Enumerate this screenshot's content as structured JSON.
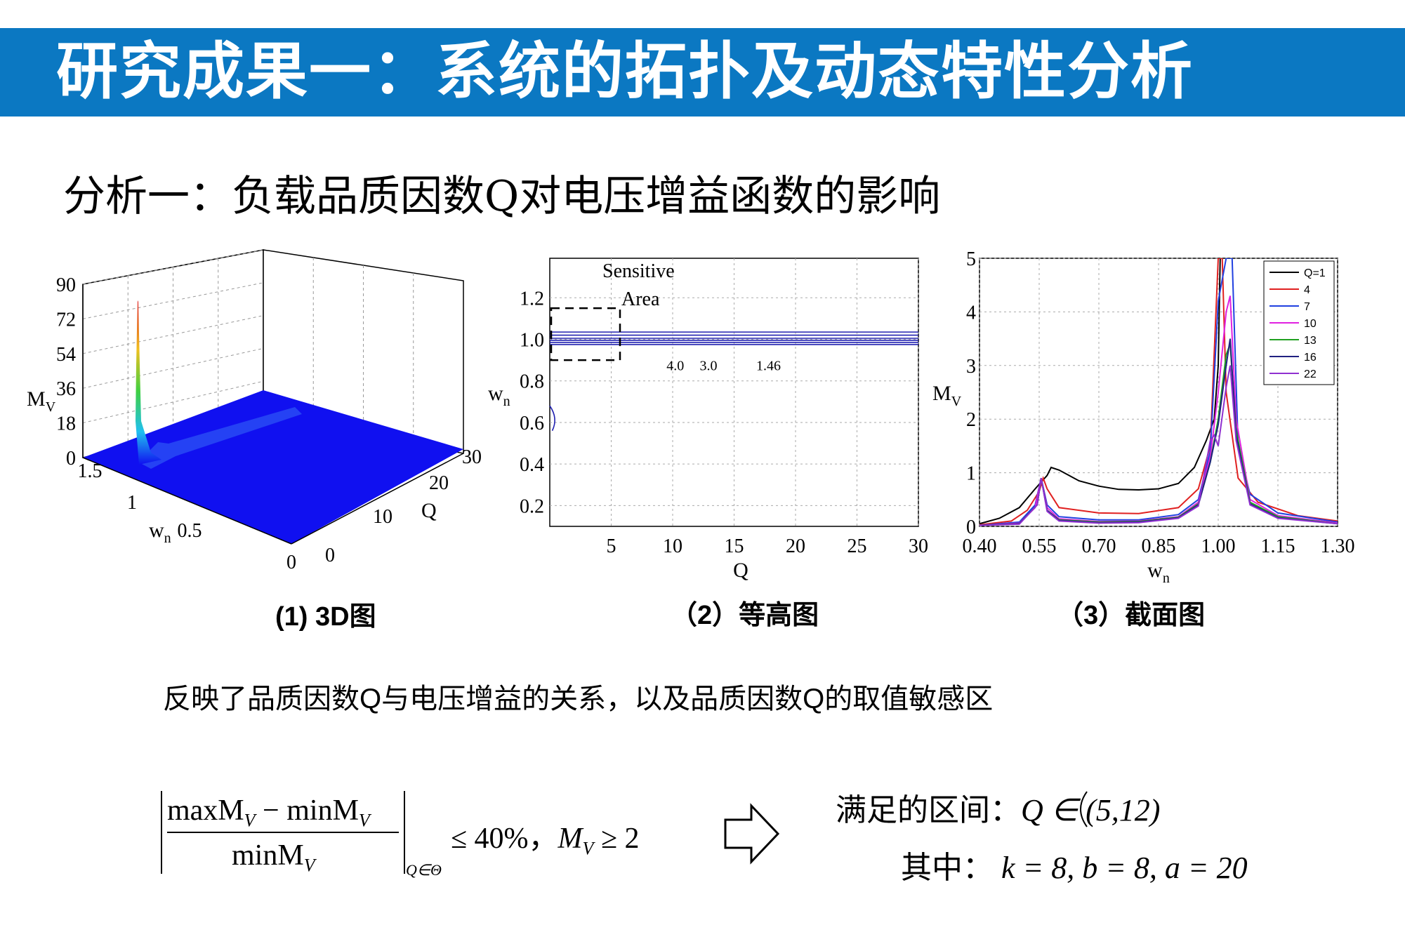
{
  "title": "研究成果一：系统的拓扑及动态特性分析",
  "subtitle": "分析一：负载品质因数Q对电压增益函数的影响",
  "colors": {
    "title_bar": "#0b78c2",
    "title_text": "#ffffff"
  },
  "captions": {
    "c1": "(1) 3D图",
    "c2": "（2）等高图",
    "c3": "（3）截面图"
  },
  "note": "反映了品质因数Q与电压增益的关系，以及品质因数Q的取值敏感区",
  "formula": {
    "numerator": "maxM",
    "numerator_minus": "− minM",
    "sub_v": "V",
    "denominator": "minM",
    "subscript": "Q∈Θ",
    "condition": "≤ 40%，",
    "condition_m": "M",
    "condition_ge": " ≥ 2",
    "arrow_icon": "hollow-right-arrow-icon",
    "result_label": "满足的区间：",
    "result_expr": "Q ∈ (5,12)",
    "params_label": "其中：",
    "params": "k = 8,    b = 8,    a = 20"
  },
  "chart_data": [
    {
      "type": "surface-3d",
      "zlabel": "M",
      "zlabel_sub": "V",
      "ylabel": "w",
      "ylabel_sub": "n",
      "xlabel": "Q",
      "z_ticks": [
        "90",
        "72",
        "54",
        "36",
        "18",
        "0"
      ],
      "wn_ticks": [
        "1.5",
        "1",
        "0.5",
        "0"
      ],
      "q_ticks": [
        "30",
        "20",
        "10",
        "0"
      ],
      "zlim": [
        0,
        90
      ],
      "wn_range": [
        0,
        1.5
      ],
      "q_range": [
        0,
        30
      ],
      "peak": {
        "q": 0.5,
        "wn": 1.0,
        "mv": 85
      },
      "colors": {
        "surface": "#1010f0",
        "peak": "#e02020"
      }
    },
    {
      "type": "contour",
      "xlabel": "Q",
      "ylabel": "w",
      "ylabel_sub": "n",
      "x_ticks": [
        "5",
        "10",
        "15",
        "20",
        "25",
        "30"
      ],
      "y_ticks": [
        "1.2",
        "1.0",
        "0.8",
        "0.6",
        "0.4",
        "0.2"
      ],
      "xlim": [
        0,
        30
      ],
      "ylim": [
        0.1,
        1.39
      ],
      "sensitive_label": [
        "Sensitive",
        "Area"
      ],
      "sensitive_box": {
        "q": [
          0,
          5.6
        ],
        "wn": [
          0.9,
          1.15
        ]
      },
      "contour_labels": [
        {
          "text": "4.0",
          "q": 9.5,
          "wn": 0.98
        },
        {
          "text": "3.0",
          "q": 12.2,
          "wn": 0.98
        },
        {
          "text": "1.46",
          "q": 16.8,
          "wn": 0.98
        }
      ],
      "line_color": "#2020b0"
    },
    {
      "type": "line",
      "xlabel": "w",
      "xlabel_sub": "n",
      "ylabel": "M",
      "ylabel_sub": "V",
      "x_ticks": [
        "0.40",
        "0.55",
        "0.70",
        "0.85",
        "1.00",
        "1.15",
        "1.30"
      ],
      "y_ticks": [
        "5",
        "4",
        "3",
        "2",
        "1",
        "0"
      ],
      "xlim": [
        0.4,
        1.3
      ],
      "ylim": [
        0,
        5
      ],
      "series": [
        {
          "name": "Q=1",
          "color": "#000000",
          "points": [
            [
              0.4,
              0.05
            ],
            [
              0.45,
              0.15
            ],
            [
              0.5,
              0.35
            ],
            [
              0.54,
              0.7
            ],
            [
              0.57,
              0.95
            ],
            [
              0.58,
              1.1
            ],
            [
              0.6,
              1.05
            ],
            [
              0.65,
              0.85
            ],
            [
              0.7,
              0.75
            ],
            [
              0.75,
              0.69
            ],
            [
              0.8,
              0.68
            ],
            [
              0.85,
              0.7
            ],
            [
              0.9,
              0.8
            ],
            [
              0.94,
              1.1
            ],
            [
              0.97,
              1.6
            ],
            [
              0.99,
              2.0
            ],
            [
              1.0,
              3.0
            ],
            [
              1.005,
              5.0
            ]
          ]
        },
        {
          "name": "4",
          "color": "#e02020",
          "points": [
            [
              0.4,
              0.03
            ],
            [
              0.48,
              0.1
            ],
            [
              0.52,
              0.3
            ],
            [
              0.55,
              0.65
            ],
            [
              0.56,
              0.9
            ],
            [
              0.57,
              0.7
            ],
            [
              0.6,
              0.35
            ],
            [
              0.7,
              0.25
            ],
            [
              0.8,
              0.24
            ],
            [
              0.9,
              0.35
            ],
            [
              0.95,
              0.7
            ],
            [
              0.98,
              1.5
            ],
            [
              1.0,
              5.0
            ],
            [
              1.01,
              5.0
            ],
            [
              1.02,
              2.5
            ],
            [
              1.05,
              0.9
            ],
            [
              1.1,
              0.45
            ],
            [
              1.2,
              0.2
            ],
            [
              1.3,
              0.1
            ]
          ]
        },
        {
          "name": "7",
          "color": "#2040e0",
          "points": [
            [
              0.4,
              0.02
            ],
            [
              0.5,
              0.08
            ],
            [
              0.54,
              0.4
            ],
            [
              0.555,
              0.9
            ],
            [
              0.57,
              0.4
            ],
            [
              0.6,
              0.18
            ],
            [
              0.7,
              0.12
            ],
            [
              0.8,
              0.12
            ],
            [
              0.9,
              0.22
            ],
            [
              0.95,
              0.5
            ],
            [
              0.98,
              1.4
            ],
            [
              1.0,
              4.2
            ],
            [
              1.02,
              5.0
            ],
            [
              1.035,
              5.0
            ],
            [
              1.05,
              1.5
            ],
            [
              1.08,
              0.6
            ],
            [
              1.15,
              0.25
            ],
            [
              1.3,
              0.08
            ]
          ]
        },
        {
          "name": "10",
          "color": "#e020e0",
          "points": [
            [
              0.4,
              0.02
            ],
            [
              0.5,
              0.06
            ],
            [
              0.54,
              0.35
            ],
            [
              0.555,
              0.9
            ],
            [
              0.57,
              0.35
            ],
            [
              0.6,
              0.14
            ],
            [
              0.7,
              0.09
            ],
            [
              0.8,
              0.1
            ],
            [
              0.9,
              0.18
            ],
            [
              0.95,
              0.45
            ],
            [
              0.98,
              1.3
            ],
            [
              1.0,
              2.5
            ],
            [
              1.02,
              4.0
            ],
            [
              1.03,
              4.3
            ],
            [
              1.045,
              2.0
            ],
            [
              1.08,
              0.5
            ],
            [
              1.15,
              0.2
            ],
            [
              1.3,
              0.06
            ]
          ]
        },
        {
          "name": "13",
          "color": "#20a020",
          "points": [
            [
              0.4,
              0.02
            ],
            [
              0.5,
              0.05
            ],
            [
              0.545,
              0.4
            ],
            [
              0.555,
              0.9
            ],
            [
              0.57,
              0.3
            ],
            [
              0.6,
              0.12
            ],
            [
              0.7,
              0.08
            ],
            [
              0.8,
              0.09
            ],
            [
              0.9,
              0.17
            ],
            [
              0.95,
              0.42
            ],
            [
              0.98,
              1.2
            ],
            [
              1.0,
              2.0
            ],
            [
              1.02,
              3.2
            ],
            [
              1.03,
              3.4
            ],
            [
              1.045,
              1.8
            ],
            [
              1.08,
              0.45
            ],
            [
              1.15,
              0.18
            ],
            [
              1.3,
              0.05
            ]
          ]
        },
        {
          "name": "16",
          "color": "#202080",
          "points": [
            [
              0.4,
              0.02
            ],
            [
              0.5,
              0.05
            ],
            [
              0.545,
              0.4
            ],
            [
              0.555,
              0.9
            ],
            [
              0.57,
              0.3
            ],
            [
              0.6,
              0.11
            ],
            [
              0.7,
              0.07
            ],
            [
              0.8,
              0.08
            ],
            [
              0.9,
              0.16
            ],
            [
              0.95,
              0.4
            ],
            [
              0.98,
              1.2
            ],
            [
              1.0,
              1.9
            ],
            [
              1.02,
              3.0
            ],
            [
              1.03,
              3.5
            ],
            [
              1.045,
              1.7
            ],
            [
              1.08,
              0.42
            ],
            [
              1.15,
              0.16
            ],
            [
              1.3,
              0.05
            ]
          ]
        },
        {
          "name": "22",
          "color": "#9030d0",
          "points": [
            [
              0.4,
              0.02
            ],
            [
              0.5,
              0.04
            ],
            [
              0.545,
              0.4
            ],
            [
              0.555,
              0.9
            ],
            [
              0.57,
              0.28
            ],
            [
              0.6,
              0.1
            ],
            [
              0.7,
              0.06
            ],
            [
              0.8,
              0.07
            ],
            [
              0.9,
              0.15
            ],
            [
              0.95,
              0.38
            ],
            [
              0.98,
              1.6
            ],
            [
              0.99,
              1.7
            ],
            [
              1.0,
              1.5
            ],
            [
              1.02,
              2.6
            ],
            [
              1.03,
              3.0
            ],
            [
              1.045,
              1.6
            ],
            [
              1.08,
              0.4
            ],
            [
              1.15,
              0.15
            ],
            [
              1.3,
              0.05
            ]
          ]
        }
      ]
    }
  ]
}
